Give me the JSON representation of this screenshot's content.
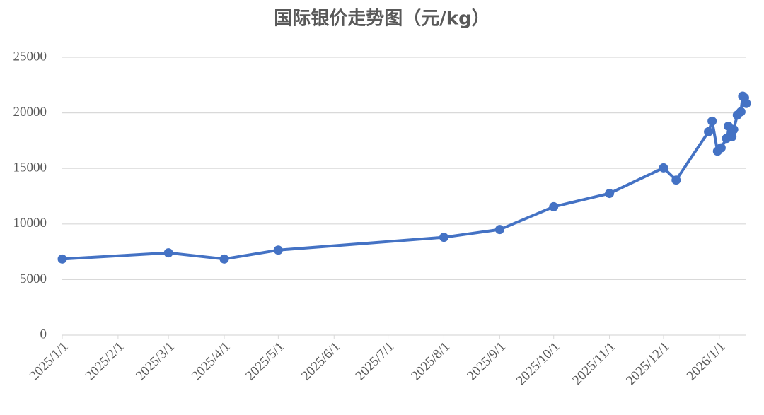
{
  "chart_data": {
    "type": "line",
    "title": "国际银价走势图（元/kg）",
    "x": [
      "2025/1/1",
      "2025/3/1",
      "2025/4/1",
      "2025/5/1",
      "2025/8/1",
      "2025/9/1",
      "2025/10/1",
      "2025/11/1",
      "2025/12/1",
      "2025/12/8",
      "2025/12/26",
      "2025/12/28",
      "2025/12/31",
      "2026/1/2",
      "2026/1/5",
      "2026/1/6",
      "2026/1/8",
      "2026/1/9",
      "2026/1/11",
      "2026/1/13",
      "2026/1/14",
      "2026/1/15",
      "2026/1/16"
    ],
    "series": [
      {
        "name": "国际银价",
        "color": "#4472c4",
        "values": [
          6850,
          7400,
          6850,
          7650,
          8800,
          9500,
          11550,
          12750,
          15050,
          13950,
          18300,
          19250,
          16550,
          16850,
          17700,
          18800,
          17850,
          18500,
          19800,
          20100,
          21500,
          21350,
          20850
        ]
      }
    ],
    "xlim": [
      "2025/1/1",
      "2026/1/16"
    ],
    "xticks": [
      "2025/1/1",
      "2025/2/1",
      "2025/3/1",
      "2025/4/1",
      "2025/5/1",
      "2025/6/1",
      "2025/7/1",
      "2025/8/1",
      "2025/9/1",
      "2025/10/1",
      "2025/11/1",
      "2025/12/1",
      "2026/1/1"
    ],
    "ylim": [
      0,
      25000
    ],
    "yticks": [
      0,
      5000,
      10000,
      15000,
      20000,
      25000
    ],
    "grid": true
  }
}
